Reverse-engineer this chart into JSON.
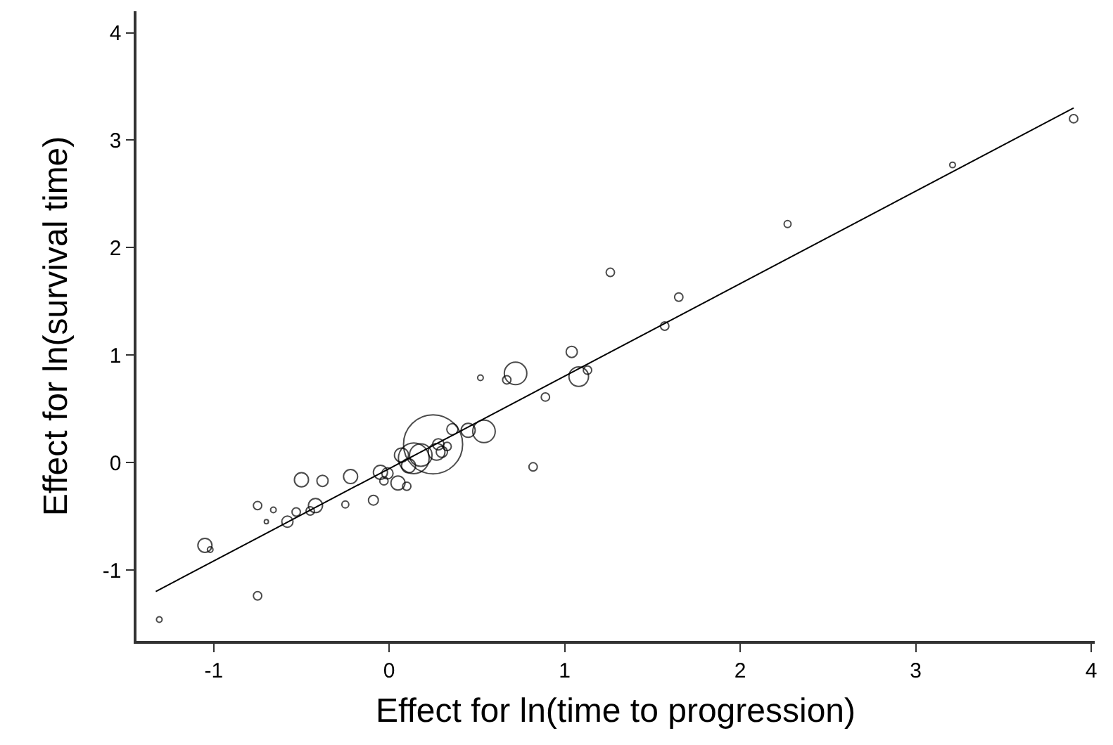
{
  "chart_data": {
    "type": "bubble",
    "xlabel": "Effect for ln(time to progression)",
    "ylabel": "Effect for ln(survival time)",
    "xlim": [
      -1.44,
      4.02
    ],
    "ylim": [
      -1.66,
      4.2
    ],
    "xticks": [
      -1,
      0,
      1,
      2,
      3,
      4
    ],
    "yticks": [
      -1,
      0,
      1,
      2,
      3,
      4
    ],
    "grid": false,
    "legend": false,
    "series": [
      {
        "color": "#000000",
        "marker": "circle",
        "x": [
          -1.31,
          -1.05,
          -1.02,
          -0.75,
          -0.75,
          -0.7,
          -0.66,
          -0.58,
          -0.53,
          -0.5,
          -0.45,
          -0.42,
          -0.38,
          -0.25,
          -0.22,
          -0.09,
          -0.05,
          -0.03,
          -0.01,
          0.05,
          0.1,
          0.07,
          0.11,
          0.14,
          0.18,
          0.25,
          0.27,
          0.28,
          0.3,
          0.33,
          0.36,
          0.45,
          0.54,
          0.52,
          0.67,
          0.72,
          0.82,
          0.89,
          1.04,
          1.08,
          1.13,
          1.26,
          1.57,
          1.65,
          2.27,
          3.21,
          3.9
        ],
        "values": [
          -1.46,
          -0.77,
          -0.81,
          -1.24,
          -0.4,
          -0.55,
          -0.44,
          -0.55,
          -0.46,
          -0.16,
          -0.45,
          -0.4,
          -0.17,
          -0.39,
          -0.13,
          -0.35,
          -0.09,
          -0.17,
          -0.1,
          -0.19,
          -0.22,
          0.07,
          -0.03,
          0.04,
          0.07,
          0.17,
          0.1,
          0.17,
          0.1,
          0.15,
          0.31,
          0.3,
          0.29,
          0.79,
          0.77,
          0.83,
          -0.04,
          0.61,
          1.03,
          0.8,
          0.86,
          1.77,
          1.27,
          1.54,
          2.22,
          2.77,
          3.2
        ],
        "sizes": [
          0.009,
          0.057,
          0.009,
          0.02,
          0.02,
          0.005,
          0.009,
          0.036,
          0.02,
          0.057,
          0.02,
          0.057,
          0.036,
          0.014,
          0.057,
          0.028,
          0.057,
          0.02,
          0.036,
          0.057,
          0.02,
          0.057,
          0.057,
          0.27,
          0.145,
          1,
          0.08,
          0.036,
          0.036,
          0.02,
          0.036,
          0.057,
          0.145,
          0.009,
          0.02,
          0.145,
          0.02,
          0.02,
          0.036,
          0.11,
          0.02,
          0.02,
          0.02,
          0.02,
          0.014,
          0.009,
          0.02
        ]
      },
      {
        "type": "line",
        "color": "#000000",
        "x": [
          -1.33,
          3.9
        ],
        "values": [
          -1.2,
          3.3
        ]
      }
    ]
  }
}
